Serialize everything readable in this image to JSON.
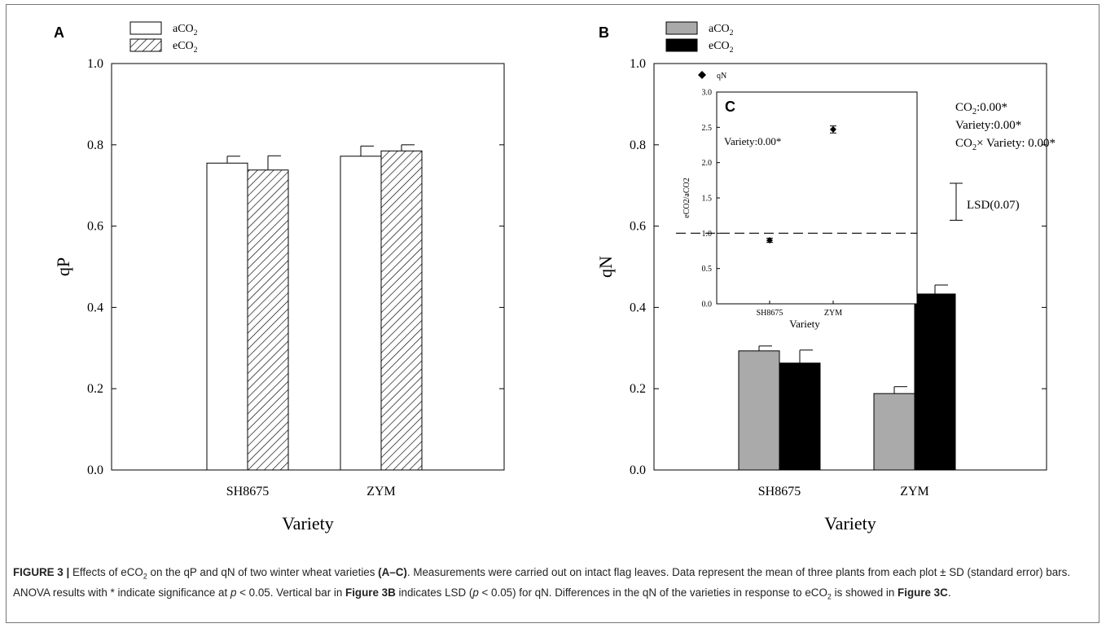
{
  "chart_data": [
    {
      "panel": "A",
      "type": "bar",
      "xlabel": "Variety",
      "ylabel": "qP",
      "ylim": [
        0,
        1.0
      ],
      "yticks": [
        "0.0",
        "0.2",
        "0.4",
        "0.6",
        "0.8",
        "1.0"
      ],
      "categories": [
        "SH8675",
        "ZYM"
      ],
      "series": [
        {
          "name": "aCO2",
          "style": "white",
          "values": [
            0.755,
            0.772
          ],
          "errors": [
            0.017,
            0.025
          ]
        },
        {
          "name": "eCO2",
          "style": "hatched",
          "values": [
            0.738,
            0.785
          ],
          "errors": [
            0.035,
            0.015
          ]
        }
      ]
    },
    {
      "panel": "B",
      "type": "bar",
      "xlabel": "Variety",
      "ylabel": "qN",
      "ylim": [
        0,
        1.0
      ],
      "yticks": [
        "0.0",
        "0.2",
        "0.4",
        "0.6",
        "0.8",
        "1.0"
      ],
      "categories": [
        "SH8675",
        "ZYM"
      ],
      "series": [
        {
          "name": "aCO2",
          "color": "#aaaaaa",
          "values": [
            0.293,
            0.188
          ],
          "errors": [
            0.012,
            0.017
          ]
        },
        {
          "name": "eCO2",
          "color": "#000000",
          "values": [
            0.263,
            0.433
          ],
          "errors": [
            0.032,
            0.022
          ]
        }
      ],
      "stats": [
        "CO2:0.00*",
        "Variety:0.00*",
        "CO2× Variety: 0.00*"
      ],
      "lsd": {
        "label": "LSD(0.07)",
        "value": 0.07
      }
    },
    {
      "panel": "C",
      "type": "scatter",
      "xlabel": "Variety",
      "ylabel": "eCO2/aCO2",
      "ylim": [
        0,
        3.0
      ],
      "yticks": [
        "0.0",
        "0.5",
        "1.0",
        "1.5",
        "2.0",
        "2.5",
        "3.0"
      ],
      "categories": [
        "SH8675",
        "ZYM"
      ],
      "series": [
        {
          "name": "qN",
          "values": [
            0.9,
            2.47
          ],
          "errors": [
            0.03,
            0.05
          ]
        }
      ],
      "reference_line": 1.0,
      "annotation": "Variety:0.00*"
    }
  ],
  "caption": {
    "figure_label": "FIGURE 3 |",
    "text1": " Effects of eCO",
    "sub1": "2",
    "text2": " on the qP and qN of two winter wheat varieties ",
    "bold1": "(A–C)",
    "text3": ". Measurements were carried out on intact flag leaves. Data represent the mean of three plants from each plot ± SD (standard error) bars. ANOVA results with * indicate significance at ",
    "ital1": "p",
    "text4": " < 0.05. Vertical bar in ",
    "bold2": "Figure 3B",
    "text5": " indicates LSD (",
    "ital2": "p",
    "text6": " < 0.05) for qN. Differences in the qN of the varieties in response to eCO",
    "sub2": "2",
    "text7": " is showed in ",
    "bold3": "Figure 3C",
    "text8": "."
  }
}
